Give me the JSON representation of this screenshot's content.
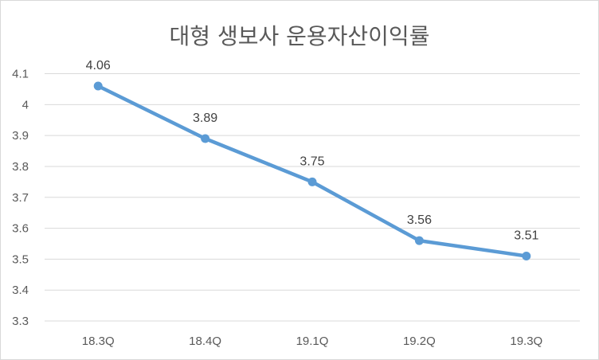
{
  "chart_data": {
    "type": "line",
    "title": "대형 생보사 운용자산이익률",
    "categories": [
      "18.3Q",
      "18.4Q",
      "19.1Q",
      "19.2Q",
      "19.3Q"
    ],
    "values": [
      4.06,
      3.89,
      3.75,
      3.56,
      3.51
    ],
    "data_labels": [
      "4.06",
      "3.89",
      "3.75",
      "3.56",
      "3.51"
    ],
    "y_ticks": [
      "3.3",
      "3.4",
      "3.5",
      "3.6",
      "3.7",
      "3.8",
      "3.9",
      "4",
      "4.1"
    ],
    "ylim": [
      3.3,
      4.1
    ],
    "grid": true,
    "legend": "none",
    "series_color": "#5b9bd5",
    "grid_color": "#d9d9d9"
  }
}
